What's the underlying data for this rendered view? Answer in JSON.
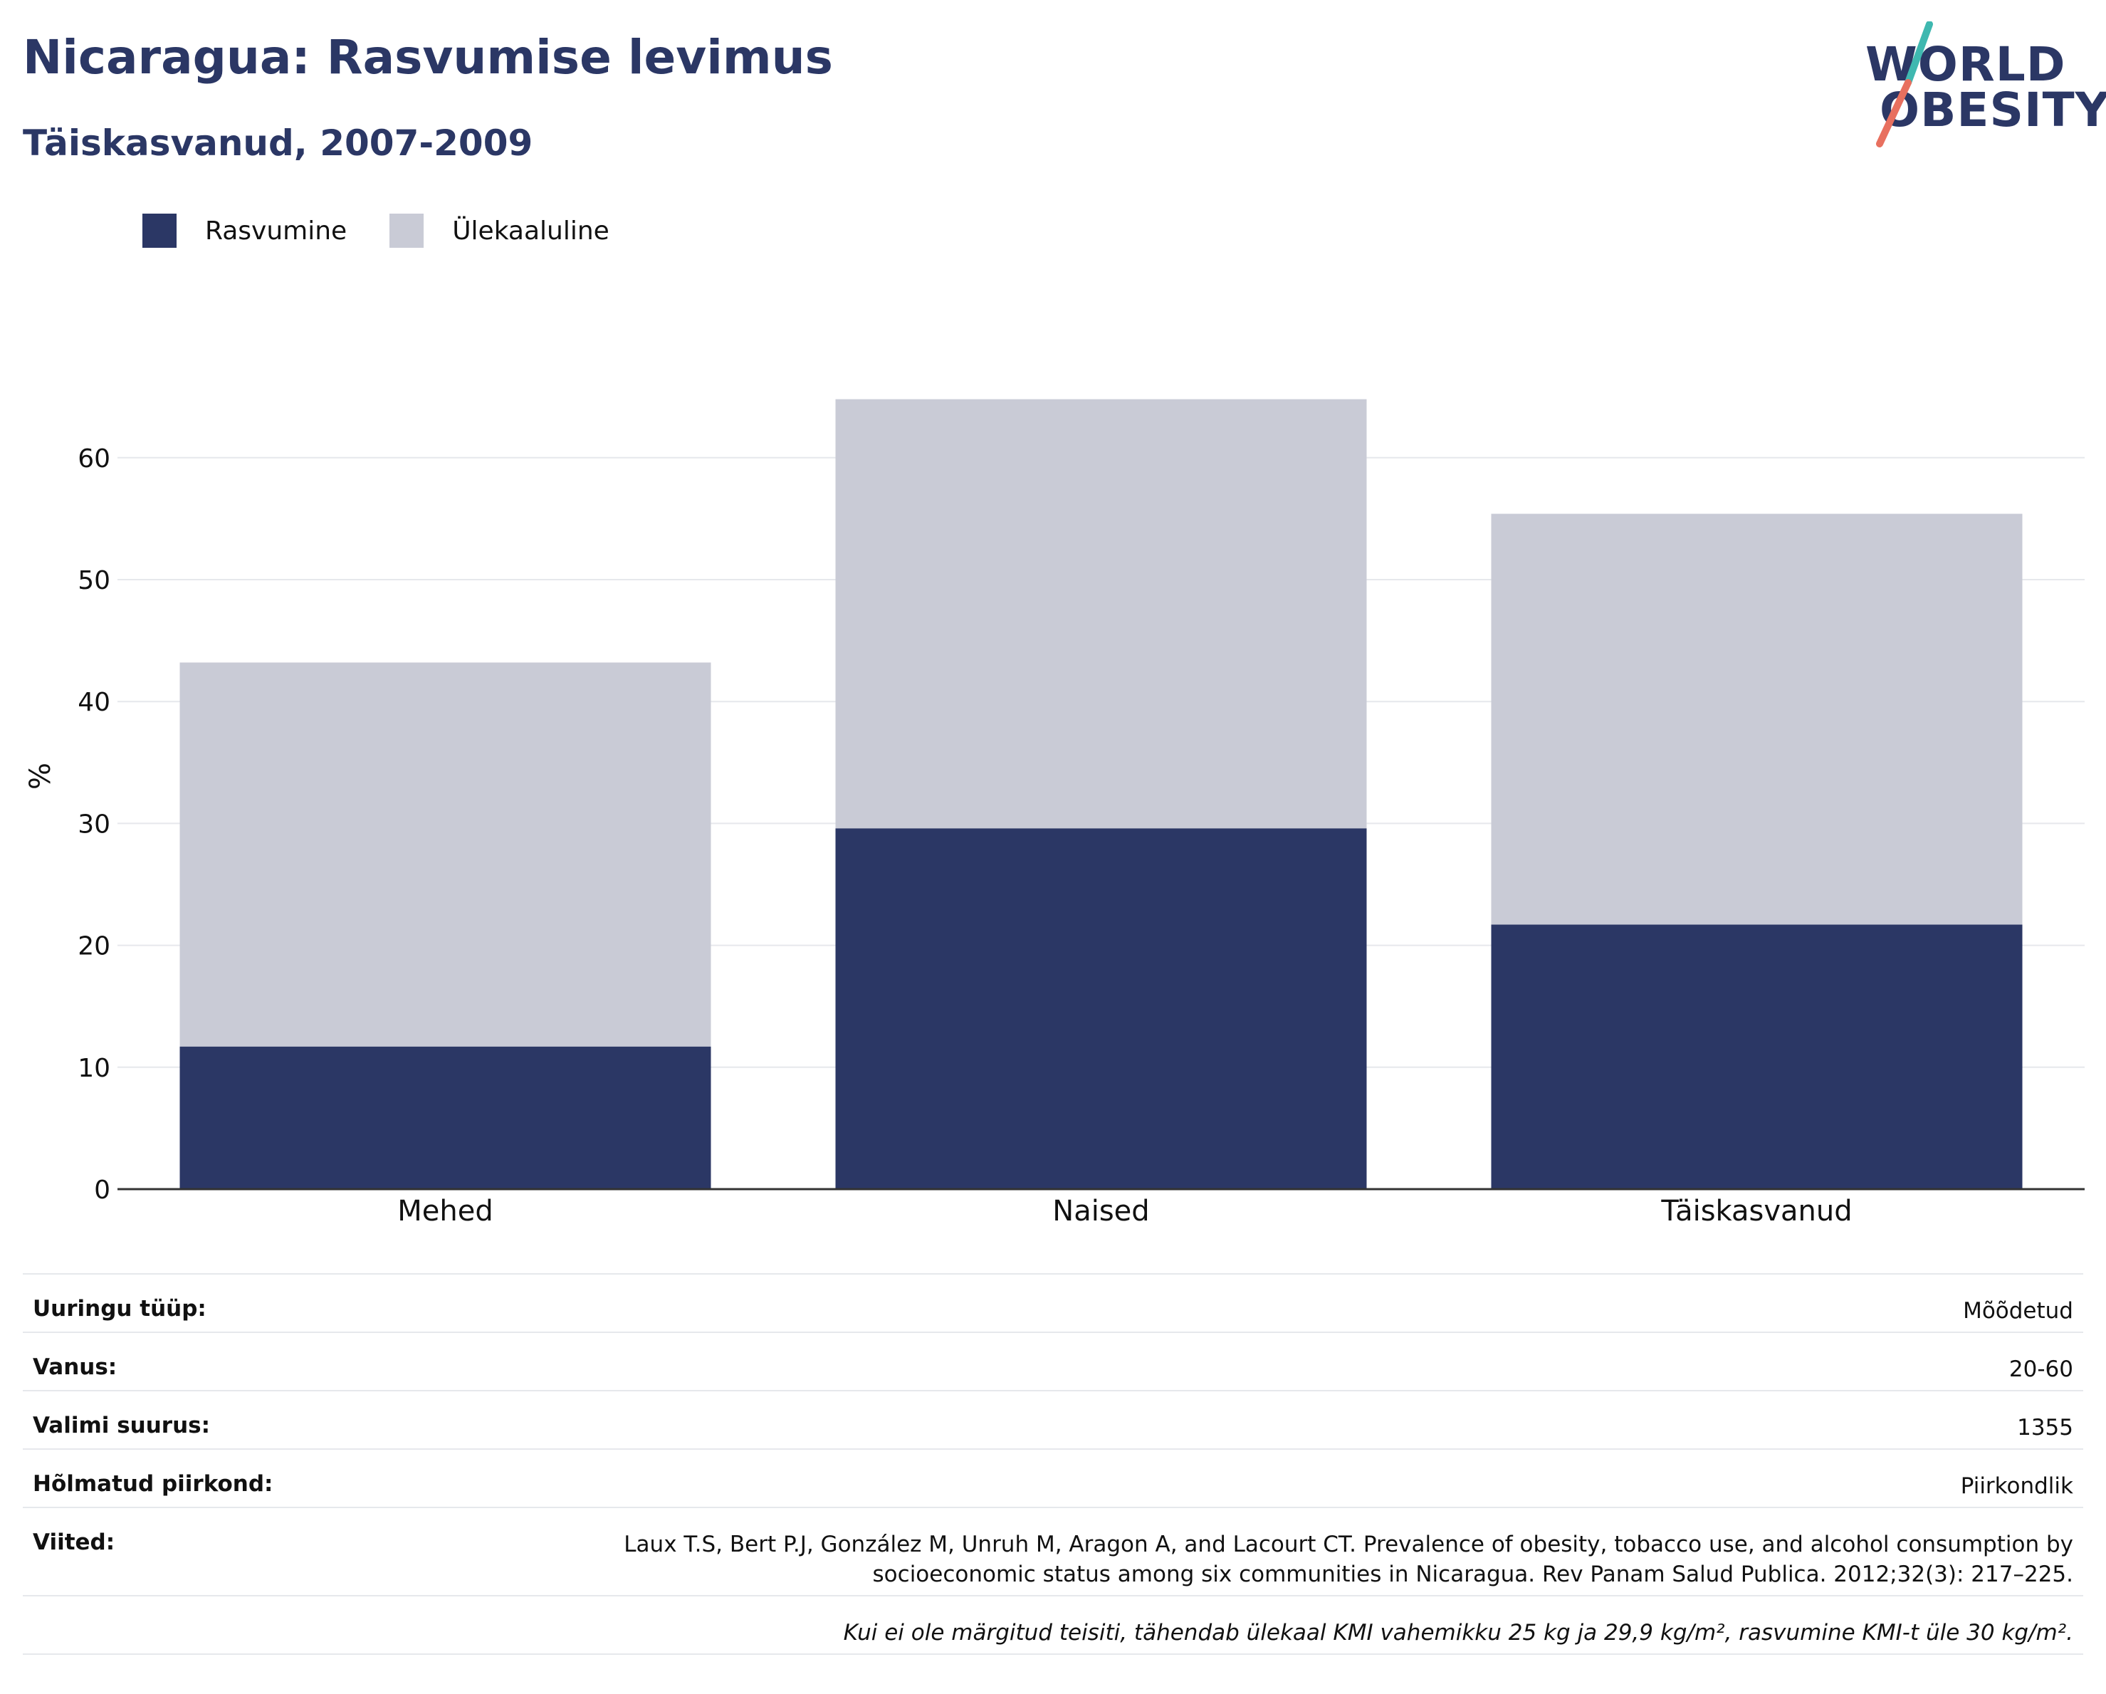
{
  "title": "Nicaragua: Rasvumise levimus",
  "subtitle": "Täiskasvanud, 2007-2009",
  "logo": {
    "line1": "WORLD",
    "line2": "OBESITY"
  },
  "colors": {
    "obesity": "#2b3765",
    "overweight": "#c9cbd6",
    "title": "#2b3765",
    "logo_teal": "#3fb8b0",
    "logo_coral": "#e8705f"
  },
  "chart_data": {
    "type": "bar",
    "stacked": true,
    "categories": [
      "Mehed",
      "Naised",
      "Täiskasvanud"
    ],
    "series": [
      {
        "name": "Rasvumine",
        "values": [
          11.7,
          29.6,
          21.7
        ]
      },
      {
        "name": "Ülekaaluline",
        "values": [
          31.5,
          35.2,
          33.7
        ]
      }
    ],
    "ylabel": "%",
    "ylim": [
      0,
      72
    ],
    "yticks": [
      0,
      10,
      20,
      30,
      40,
      50,
      60
    ],
    "grid": true,
    "legend": "top-left"
  },
  "info": {
    "survey_type": {
      "label": "Uuringu tüüp:",
      "value": "Mõõdetud"
    },
    "age": {
      "label": "Vanus:",
      "value": "20-60"
    },
    "sample_size": {
      "label": "Valimi suurus:",
      "value": "1355"
    },
    "area": {
      "label": "Hõlmatud piirkond:",
      "value": "Piirkondlik"
    },
    "references": {
      "label": "Viited:",
      "line1": "Laux T.S, Bert P.J, González M, Unruh M, Aragon A, and Lacourt CT. Prevalence of obesity, tobacco use, and alcohol consumption by",
      "line2": "socioeconomic status among six communities in Nicaragua. Rev Panam Salud Publica. 2012;32(3): 217–225."
    },
    "note": "Kui ei ole märgitud teisiti, tähendab ülekaal KMI vahemikku 25 kg ja 29,9 kg/m², rasvumine KMI-t üle 30 kg/m²."
  }
}
